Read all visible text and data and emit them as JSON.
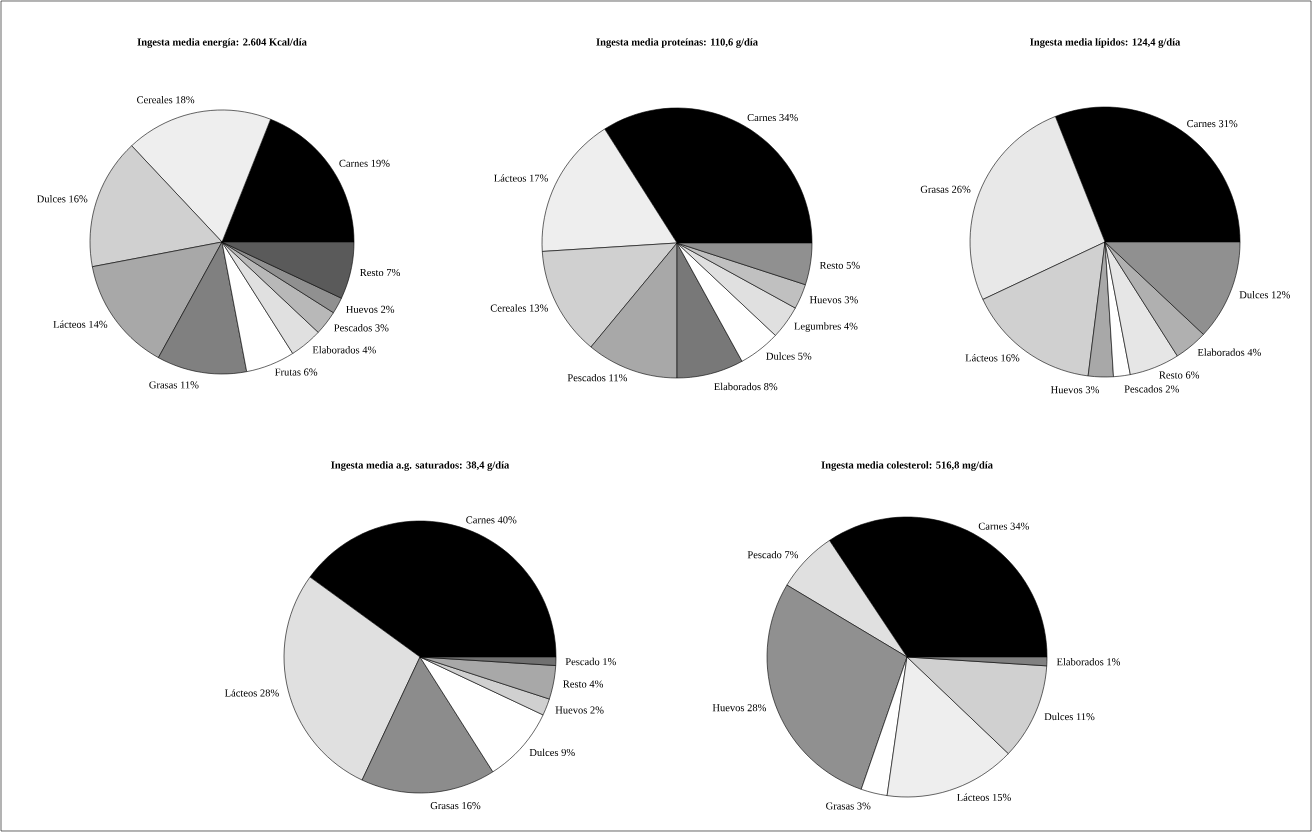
{
  "chart_data": [
    {
      "type": "pie",
      "title": "Ingesta media energía: 2.604 Kcal/día",
      "categories": [
        "Carnes",
        "Cereales",
        "Dulces",
        "Lácteos",
        "Grasas",
        "Frutas",
        "Elaborados",
        "Pescados",
        "Huevos",
        "Resto"
      ],
      "values": [
        19,
        18,
        16,
        14,
        11,
        6,
        4,
        3,
        2,
        7
      ],
      "value_labels": [
        "19%",
        "18%",
        "16%",
        "14%",
        "11%",
        "6%",
        "4%",
        "3%",
        "2%",
        "7%"
      ],
      "colors": [
        "#000000",
        "#eeeeee",
        "#d0d0d0",
        "#a8a8a8",
        "#808080",
        "#ffffff",
        "#e0e0e0",
        "#b8b8b8",
        "#909090",
        "#5a5a5a"
      ]
    },
    {
      "type": "pie",
      "title": "Ingesta media proteínas: 110,6 g/día",
      "categories": [
        "Carnes",
        "Lácteos",
        "Cereales",
        "Pescados",
        "Elaborados",
        "Dulces",
        "Legumbres",
        "Huevos",
        "Resto"
      ],
      "values": [
        34,
        17,
        13,
        11,
        8,
        5,
        4,
        3,
        5
      ],
      "value_labels": [
        "34%",
        "17%",
        "13%",
        "11%",
        "8%",
        "5%",
        "4%",
        "3%",
        "5%"
      ],
      "colors": [
        "#000000",
        "#eeeeee",
        "#d0d0d0",
        "#a8a8a8",
        "#787878",
        "#ffffff",
        "#e0e0e0",
        "#c0c0c0",
        "#909090"
      ]
    },
    {
      "type": "pie",
      "title": "Ingesta media lípidos: 124,4 g/día",
      "categories": [
        "Carnes",
        "Grasas",
        "Lácteos",
        "Huevos",
        "Pescados",
        "Resto",
        "Elaborados",
        "Dulces"
      ],
      "values": [
        31,
        26,
        16,
        3,
        2,
        6,
        4,
        12
      ],
      "value_labels": [
        "31%",
        "26%",
        "16%",
        "3%",
        "2%",
        "6%",
        "4%",
        "12%"
      ],
      "colors": [
        "#000000",
        "#e8e8e8",
        "#d0d0d0",
        "#a8a8a8",
        "#ffffff",
        "#e6e6e6",
        "#b0b0b0",
        "#909090"
      ]
    },
    {
      "type": "pie",
      "title": "Ingesta media a.g. saturados: 38,4 g/día",
      "categories": [
        "Carnes",
        "Lácteos",
        "Grasas",
        "Dulces",
        "Huevos",
        "Resto",
        "Pescado"
      ],
      "values": [
        40,
        28,
        16,
        9,
        2,
        4,
        1
      ],
      "value_labels": [
        "40%",
        "28%",
        "16%",
        "9%",
        "2%",
        "4%",
        "1%"
      ],
      "colors": [
        "#000000",
        "#e0e0e0",
        "#8c8c8c",
        "#ffffff",
        "#d0d0d0",
        "#a8a8a8",
        "#707070"
      ]
    },
    {
      "type": "pie",
      "title": "Ingesta media colesterol: 516,8 mg/día",
      "categories": [
        "Carnes",
        "Pescado",
        "Huevos",
        "Grasas",
        "Lácteos",
        "Dulces",
        "Elaborados"
      ],
      "values": [
        34,
        7,
        28,
        3,
        15,
        11,
        1
      ],
      "value_labels": [
        "34%",
        "7%",
        "28%",
        "3%",
        "15%",
        "11%",
        "1%"
      ],
      "colors": [
        "#000000",
        "#e0e0e0",
        "#909090",
        "#ffffff",
        "#eeeeee",
        "#d0d0d0",
        "#808080"
      ]
    }
  ]
}
